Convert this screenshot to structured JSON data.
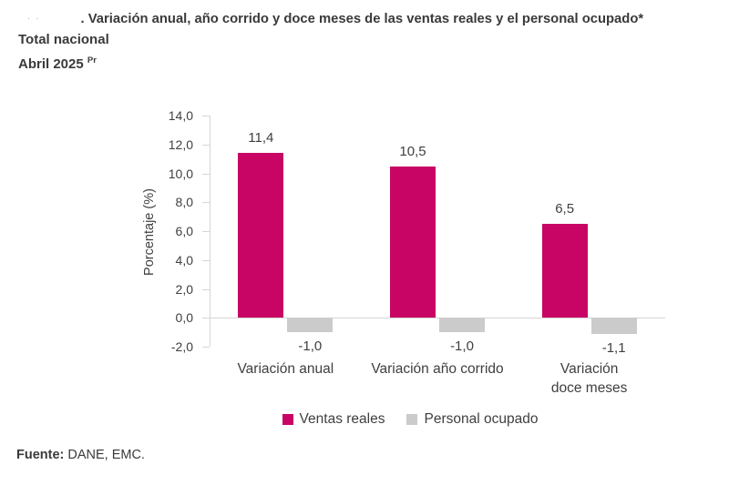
{
  "header": {
    "figure_dots": "· ·",
    "title": ". Variación anual, año corrido y doce meses de las ventas reales y el personal ocupado*",
    "subtitle": "Total nacional",
    "period": "Abril 2025",
    "period_superscript": "Pr"
  },
  "chart_data": {
    "type": "bar",
    "title": "Variación anual, año corrido y doce meses de las ventas reales y el personal ocupado - Total nacional - Abril 2025",
    "categories": [
      "Variación anual",
      "Variación año corrido",
      "Variación\ndoce meses"
    ],
    "series": [
      {
        "name": "Ventas reales",
        "color": "#C80564",
        "values": [
          11.4,
          10.5,
          6.5
        ],
        "labels": [
          "11,4",
          "10,5",
          "6,5"
        ]
      },
      {
        "name": "Personal ocupado",
        "color": "#CBCBCB",
        "values": [
          -1.0,
          -1.0,
          -1.1
        ],
        "labels": [
          "-1,0",
          "-1,0",
          "-1,1"
        ]
      }
    ],
    "xlabel": "",
    "ylabel": "Porcentaje (%)",
    "ylim": [
      -2.0,
      14.0
    ],
    "ytick_step": 2,
    "ytick_labels": [
      "14,0",
      "12,0",
      "10,0",
      "8,0",
      "6,0",
      "4,0",
      "2,0",
      "0,0",
      "-2,0"
    ],
    "grid": false,
    "legend_position": "bottom",
    "colors": {
      "axis_line": "#D6D6D6",
      "text": "#3F3F3F"
    }
  },
  "footer": {
    "source_label": "Fuente:",
    "source_text": "DANE, EMC."
  }
}
